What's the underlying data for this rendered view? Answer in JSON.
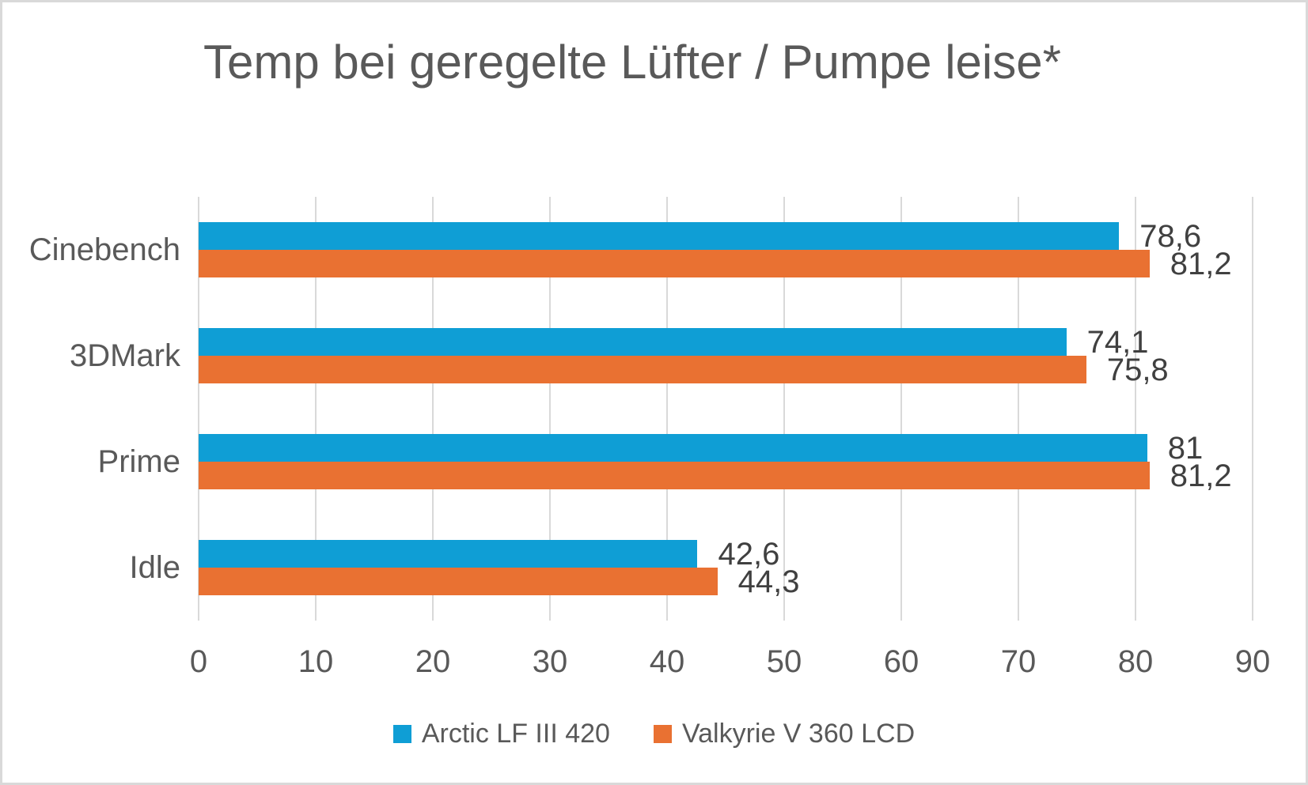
{
  "colors": {
    "series_blue": "#0F9ED5",
    "series_orange": "#E97132",
    "gridline": "#D9D9D9",
    "axis_text": "#595959",
    "data_label_text": "#404040",
    "title_text": "#595959",
    "page_border": "#D9D9D9",
    "background": "#FFFFFF"
  },
  "chart_data": {
    "type": "bar",
    "orientation": "horizontal",
    "title": "Temp bei geregelte Lüfter / Pumpe leise*",
    "categories": [
      "Cinebench",
      "3DMark",
      "Prime",
      "Idle"
    ],
    "series": [
      {
        "name": "Arctic LF III 420",
        "color": "#0F9ED5",
        "values": [
          78.6,
          74.1,
          81,
          42.6
        ],
        "value_labels": [
          "78,6",
          "74,1",
          "81",
          "42,6"
        ]
      },
      {
        "name": "Valkyrie V 360 LCD",
        "color": "#E97132",
        "values": [
          81.2,
          75.8,
          81.2,
          44.3
        ],
        "value_labels": [
          "81,2",
          "75,8",
          "81,2",
          "44,3"
        ]
      }
    ],
    "xlabel": "",
    "ylabel": "",
    "xlim": [
      0,
      90
    ],
    "xticks": [
      0,
      10,
      20,
      30,
      40,
      50,
      60,
      70,
      80,
      90
    ],
    "grid": true,
    "legend_position": "bottom",
    "decimal_separator": ","
  }
}
